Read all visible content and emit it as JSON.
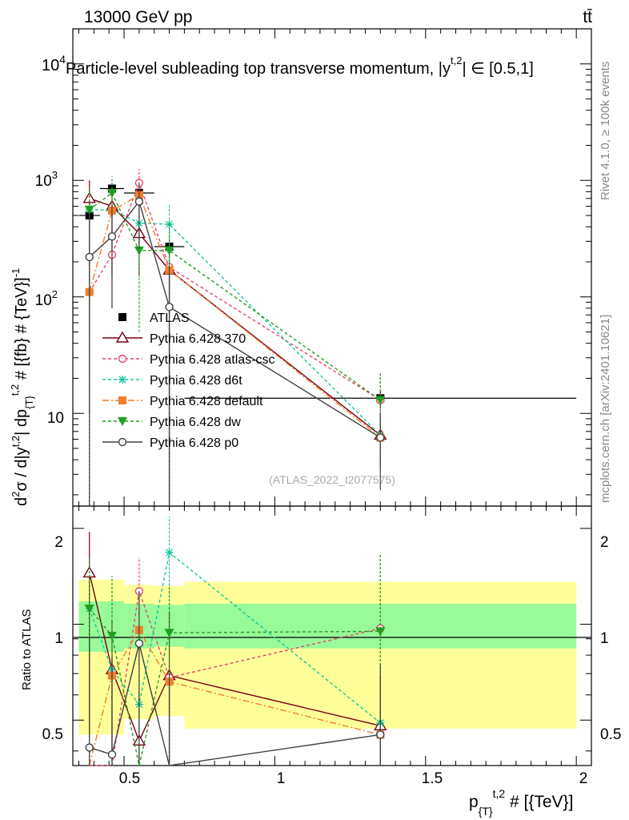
{
  "header": {
    "energy": "13000 GeV pp",
    "process": "tt̄",
    "title": "Particle-level subleading top transverse momentum, |y^{t,2}| ∈ [0.5,1]",
    "title_display": "Particle-level subleading top transverse momentum, |y",
    "title_sup": "t,2",
    "title_tail": "| ∈ [0.5,1]"
  },
  "side": {
    "rivet": "Rivet 4.1.0, ≥ 100k events",
    "mcplots": "mcplots.cern.ch [arXiv:2401.10621]"
  },
  "watermark": "(ATLAS_2022_I2077575)",
  "axes": {
    "ylabel_main": "d²σ / d|y^{t,2}| dp_{T}^{t,2} # [{fb} # {TeV}]^{-1}",
    "ylabel_ratio": "Ratio to ATLAS",
    "xlabel": "p_{T}^{t,2} # [{TeV}]",
    "xticks": [
      "0.5",
      "1",
      "1.5",
      "2"
    ],
    "yticks_main": [
      "10",
      "10",
      "10",
      "10"
    ],
    "yticks_main_exp": [
      "",
      "2",
      "3",
      "4"
    ],
    "yticks_ratio": [
      "0.5",
      "1",
      "2"
    ]
  },
  "chart_data": {
    "type": "line",
    "title": "Particle-level subleading top transverse momentum, |y^{t,2}| ∈ [0.5,1]",
    "xlabel": "p_T^{t,2} [TeV]",
    "ylabel": "d²σ / d|y^{t,2}| dp_T^{t,2} [fb/TeV]",
    "xlim": [
      0.33,
      2.05
    ],
    "ylim_main": [
      1.6,
      20000
    ],
    "ylim_ratio": [
      0.36,
      2.35
    ],
    "yscale": "log",
    "bins": [
      [
        0.35,
        0.42
      ],
      [
        0.42,
        0.5
      ],
      [
        0.5,
        0.6
      ],
      [
        0.6,
        0.7
      ],
      [
        0.7,
        2.0
      ]
    ],
    "x": [
      0.385,
      0.46,
      0.55,
      0.65,
      1.35
    ],
    "band_inner": [
      1.18,
      1.18,
      1.16,
      1.15,
      1.16
    ],
    "band_outer": [
      1.38,
      1.38,
      1.33,
      1.32,
      1.36
    ],
    "series": [
      {
        "name": "ATLAS",
        "color": "#000000",
        "marker": "square",
        "dash": "none",
        "values": [
          500,
          850,
          780,
          270,
          13.5
        ],
        "err": [
          [
            80,
            80
          ],
          [
            100,
            100
          ],
          [
            90,
            90
          ],
          [
            40,
            40
          ],
          [
            2.5,
            2.5
          ]
        ],
        "ratio": [
          1,
          1,
          1,
          1,
          1
        ]
      },
      {
        "name": "Pythia 6.428 370",
        "color": "#7a0012",
        "marker": "triangle",
        "dash": "none",
        "values": [
          700,
          600,
          350,
          170,
          6.5
        ],
        "err": [
          [
            690,
            300
          ],
          [
            450,
            250
          ],
          [
            200,
            150
          ],
          [
            169,
            100
          ],
          [
            3,
            3
          ]
        ],
        "ratio": [
          1.45,
          0.72,
          0.43,
          0.69,
          0.48
        ],
        "ratio_err": [
          [
            1.0,
            0.5
          ],
          [
            0.35,
            0.3
          ],
          [
            0.2,
            0.2
          ],
          [
            0.6,
            0.4
          ],
          [
            0.2,
            0.2
          ]
        ]
      },
      {
        "name": "Pythia 6.428 atlas-csc",
        "color": "#e8446e",
        "marker": "circle-open",
        "dash": "4,3",
        "values": [
          110,
          230,
          950,
          180,
          13
        ],
        "err": [
          [
            109,
            200
          ],
          [
            150,
            200
          ],
          [
            700,
            300
          ],
          [
            179,
            100
          ],
          [
            9,
            9
          ]
        ],
        "ratio": [
          0.23,
          0.27,
          1.27,
          0.68,
          0.97
        ],
        "ratio_err": [
          [
            0.2,
            0.4
          ],
          [
            0.2,
            0.3
          ],
          [
            0.7,
            0.35
          ],
          [
            0.6,
            0.5
          ],
          [
            0.65,
            0.7
          ]
        ]
      },
      {
        "name": "Pythia 6.428 d6t",
        "color": "#14c8a0",
        "marker": "asterisk",
        "dash": "4,3",
        "values": [
          560,
          560,
          430,
          420,
          6.5
        ],
        "err": [
          [
            559,
            300
          ],
          [
            300,
            300
          ],
          [
            250,
            250
          ],
          [
            300,
            200
          ],
          [
            3,
            3
          ]
        ],
        "ratio": [
          1.12,
          0.72,
          0.56,
          1.68,
          0.49
        ],
        "ratio_err": [
          [
            1.0,
            0.5
          ],
          [
            0.35,
            0.5
          ],
          [
            0.4,
            0.35
          ],
          [
            1.2,
            0.5
          ],
          [
            0.3,
            0.3
          ]
        ]
      },
      {
        "name": "Pythia 6.428 default",
        "color": "#f07f2c",
        "marker": "square-filled",
        "dash": "8,3,2,3",
        "values": [
          110,
          550,
          750,
          170,
          6.2
        ],
        "err": [
          [
            109,
            300
          ],
          [
            400,
            300
          ],
          [
            300,
            300
          ],
          [
            169,
            80
          ],
          [
            3,
            3
          ]
        ],
        "ratio": [
          0.22,
          0.69,
          0.96,
          0.66,
          0.45
        ],
        "ratio_err": [
          [
            0.2,
            0.4
          ],
          [
            0.3,
            0.3
          ],
          [
            0.6,
            0.4
          ],
          [
            0.5,
            0.35
          ],
          [
            0.2,
            0.25
          ]
        ]
      },
      {
        "name": "Pythia 6.428 dw",
        "color": "#20a020",
        "marker": "triangle-down",
        "dash": "4,3",
        "values": [
          560,
          780,
          250,
          250,
          13
        ],
        "err": [
          [
            559,
            300
          ],
          [
            400,
            300
          ],
          [
            200,
            200
          ],
          [
            249,
            200
          ],
          [
            9,
            9
          ]
        ],
        "ratio": [
          1.12,
          0.92,
          0.32,
          0.94,
          0.95
        ],
        "ratio_err": [
          [
            1.0,
            0.5
          ],
          [
            0.6,
            0.5
          ],
          [
            0.3,
            0.3
          ],
          [
            0.8,
            0.4
          ],
          [
            0.6,
            0.7
          ]
        ]
      },
      {
        "name": "Pythia 6.428 p0",
        "color": "#404040",
        "marker": "circle-open",
        "dash": "none",
        "values": [
          220,
          330,
          660,
          82,
          6.2
        ],
        "err": [
          [
            219,
            300
          ],
          [
            250,
            300
          ],
          [
            400,
            300
          ],
          [
            81,
            100
          ],
          [
            4,
            4
          ]
        ],
        "ratio": [
          0.41,
          0.39,
          0.87,
          0.3,
          0.45
        ],
        "ratio_err": [
          [
            0.4,
            0.5
          ],
          [
            0.3,
            0.4
          ],
          [
            0.5,
            0.4
          ],
          [
            0.3,
            0.4
          ],
          [
            0.3,
            0.3
          ]
        ]
      }
    ]
  }
}
